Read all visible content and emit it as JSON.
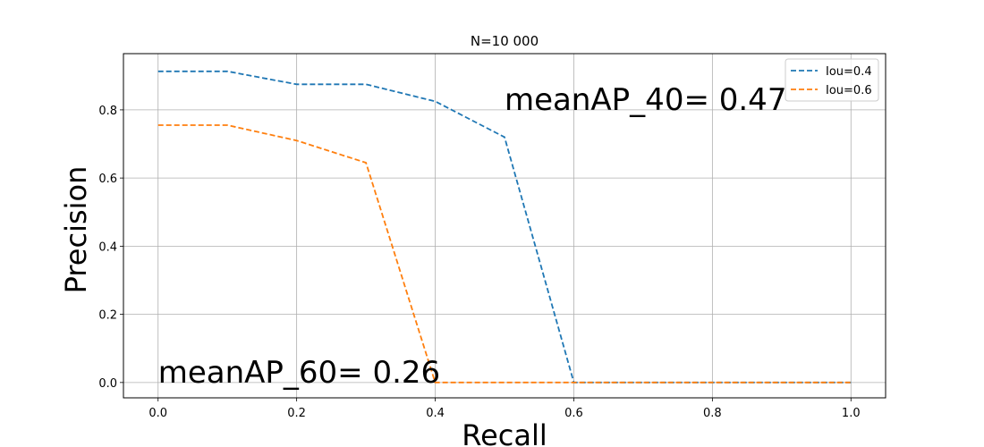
{
  "chart_data": {
    "type": "line",
    "title": "N=10 000",
    "xlabel": "Recall",
    "ylabel": "Precision",
    "xlim": [
      -0.05,
      1.05
    ],
    "ylim": [
      -0.045,
      0.965
    ],
    "xticks": [
      0.0,
      0.2,
      0.4,
      0.6,
      0.8,
      1.0
    ],
    "xtick_labels": [
      "0.0",
      "0.2",
      "0.4",
      "0.6",
      "0.8",
      "1.0"
    ],
    "yticks": [
      0.0,
      0.2,
      0.4,
      0.6,
      0.8
    ],
    "ytick_labels": [
      "0.0",
      "0.2",
      "0.4",
      "0.6",
      "0.8"
    ],
    "grid": true,
    "legend_position": "top-right",
    "x": [
      0.0,
      0.1,
      0.2,
      0.3,
      0.4,
      0.5,
      0.6,
      0.7,
      0.8,
      0.9,
      1.0
    ],
    "series": [
      {
        "name": "Iou=0.4",
        "color": "#1f77b4",
        "line_style": "dashed",
        "values": [
          0.913,
          0.913,
          0.875,
          0.875,
          0.825,
          0.72,
          0.0,
          0.0,
          0.0,
          0.0,
          0.0
        ]
      },
      {
        "name": "Iou=0.6",
        "color": "#ff7f0e",
        "line_style": "dashed",
        "values": [
          0.755,
          0.755,
          0.71,
          0.645,
          0.0,
          0.0,
          0.0,
          0.0,
          0.0,
          0.0,
          0.0
        ]
      }
    ],
    "annotations": [
      {
        "text": "meanAP_40= 0.47",
        "x": 0.5,
        "y": 0.8
      },
      {
        "text": "meanAP_60= 0.26",
        "x": 0.0,
        "y": 0.0
      }
    ]
  }
}
